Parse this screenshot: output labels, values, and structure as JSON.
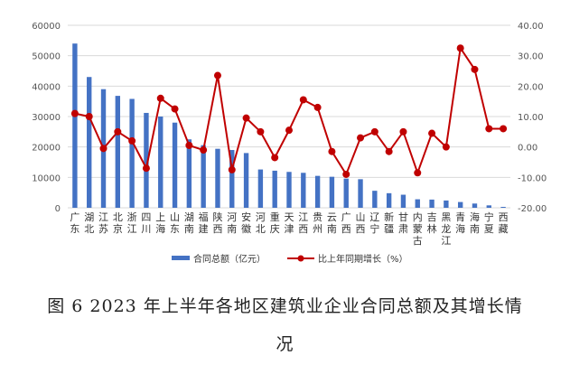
{
  "chart_data": {
    "type": "bar+line",
    "categories": [
      "广东",
      "湖北",
      "江苏",
      "北京",
      "浙江",
      "四川",
      "上海",
      "山东",
      "湖南",
      "福建",
      "陕西",
      "河南",
      "安徽",
      "河北",
      "重庆",
      "天津",
      "江西",
      "贵州",
      "云南",
      "广西",
      "山西",
      "辽宁",
      "新疆",
      "甘肃",
      "内蒙古",
      "吉林",
      "黑龙江",
      "青海",
      "海南",
      "宁夏",
      "西藏"
    ],
    "series": [
      {
        "name": "合同总额（亿元）",
        "axis": "left",
        "type": "bar",
        "color": "#4472C4",
        "values": [
          54000,
          43000,
          39000,
          36800,
          35800,
          31200,
          30000,
          28000,
          22500,
          20600,
          19400,
          19000,
          18000,
          12600,
          12200,
          11800,
          11500,
          10500,
          10200,
          9600,
          9400,
          5600,
          4800,
          4300,
          2800,
          2700,
          2400,
          1900,
          1400,
          800,
          300
        ]
      },
      {
        "name": "比上年同期增长（%）",
        "axis": "right",
        "type": "line",
        "color": "#C00000",
        "values": [
          11.0,
          10.0,
          -0.5,
          5.0,
          2.0,
          -7.0,
          16.0,
          12.5,
          0.5,
          -1.0,
          23.5,
          -7.5,
          9.5,
          5.0,
          -3.5,
          5.5,
          15.5,
          13.0,
          -1.5,
          -9.0,
          3.0,
          5.0,
          -1.5,
          5.0,
          -8.5,
          4.5,
          0.0,
          32.5,
          25.5,
          6.0,
          6.0
        ]
      }
    ],
    "y_left": {
      "min": 0,
      "max": 60000,
      "ticks": [
        "0",
        "10000",
        "20000",
        "30000",
        "40000",
        "50000",
        "60000"
      ]
    },
    "y_right": {
      "min": -20,
      "max": 40,
      "ticks": [
        "-20.00",
        "-10.00",
        "0.00",
        "10.00",
        "20.00",
        "30.00",
        "40.00"
      ]
    },
    "grid": "horizontal",
    "legend_position": "bottom"
  },
  "caption": {
    "line1": "图 6 2023 年上半年各地区建筑业企业合同总额及其增长情",
    "line2": "况"
  }
}
